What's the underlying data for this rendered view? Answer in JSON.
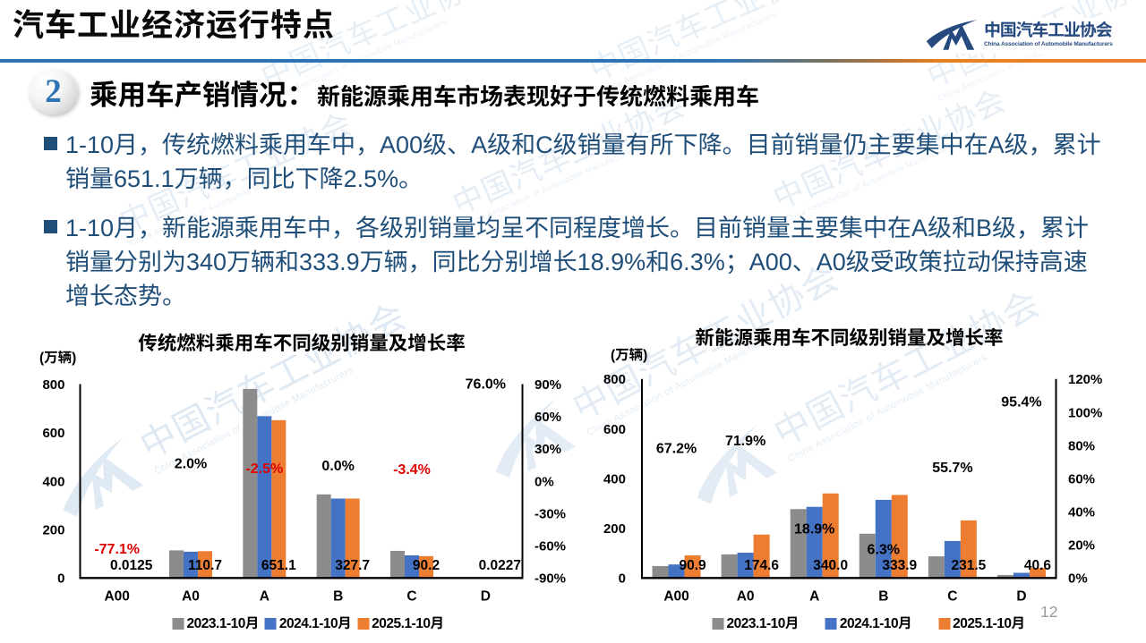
{
  "header": {
    "title": "汽车工业经济运行特点",
    "logo": {
      "zh": "中国汽车工业协会",
      "en": "China Association of Automobile Manufacturers"
    }
  },
  "section": {
    "badge": "2",
    "heading": "乘用车产销情况：",
    "subheading": "新能源乘用车市场表现好于传统燃料乘用车"
  },
  "bullets": [
    {
      "lines": [
        "1-10月，传统燃料乘用车中，A00级、A级和C级销量有所下降。目前销量仍主要集中在A级，累计",
        "销量651.1万辆，同比下降2.5%。"
      ]
    },
    {
      "lines": [
        "1-10月，新能源乘用车中，各级别销量均呈不同程度增长。目前销量主要集中在A级和B级，累计",
        "销量分别为340万辆和333.9万辆，同比分别增长18.9%和6.3%；A00、A0级受政策拉动保持高速",
        "增长态势。"
      ]
    }
  ],
  "chart_data": [
    {
      "type": "bar",
      "title": "传统燃料乘用车不同级别销量及增长率",
      "unit_label": "(万辆)",
      "categories": [
        "A00",
        "A0",
        "A",
        "B",
        "C",
        "D"
      ],
      "series": [
        {
          "name": "2023.1-10月",
          "color": "#8C8C8C",
          "values": [
            1.0,
            114.0,
            780.0,
            345.0,
            112.0,
            0.9
          ]
        },
        {
          "name": "2024.1-10月",
          "color": "#4472C4",
          "values": [
            0.055,
            108.5,
            667.8,
            327.7,
            93.4,
            0.013
          ]
        },
        {
          "name": "2025.1-10月",
          "color": "#ED7D31",
          "values": [
            0.0125,
            110.7,
            651.1,
            327.7,
            90.2,
            0.0227
          ]
        }
      ],
      "value_labels": [
        "0.0125",
        "110.7",
        "651.1",
        "327.7",
        "90.2",
        "0.0227"
      ],
      "growth_labels": [
        "-77.1%",
        "2.0%",
        "-2.5%",
        "0.0%",
        "-3.4%",
        "76.0%"
      ],
      "growth_values": [
        -77.1,
        2.0,
        -2.5,
        0.0,
        -3.4,
        76.0
      ],
      "primary_axis": {
        "min": 0,
        "max": 800,
        "step": 200
      },
      "secondary_axis": {
        "min": -90,
        "max": 90,
        "step": 30,
        "suffix": "%"
      },
      "ylabel": "(万辆)",
      "legend_position": "bottom",
      "grid": false
    },
    {
      "type": "bar",
      "title": "新能源乘用车不同级别销量及增长率",
      "unit_label": "(万辆)",
      "categories": [
        "A00",
        "A0",
        "A",
        "B",
        "C",
        "D"
      ],
      "series": [
        {
          "name": "2023.1-10月",
          "color": "#8C8C8C",
          "values": [
            48.0,
            95.0,
            277.0,
            178.0,
            87.0,
            12.0
          ]
        },
        {
          "name": "2024.1-10月",
          "color": "#4472C4",
          "values": [
            54.4,
            101.6,
            286.0,
            314.1,
            148.7,
            20.8
          ]
        },
        {
          "name": "2025.1-10月",
          "color": "#ED7D31",
          "values": [
            90.9,
            174.6,
            340.0,
            333.9,
            231.5,
            40.6
          ]
        }
      ],
      "value_labels": [
        "90.9",
        "174.6",
        "340.0",
        "333.9",
        "231.5",
        "40.6"
      ],
      "growth_labels": [
        "67.2%",
        "71.9%",
        "18.9%",
        "6.3%",
        "55.7%",
        "95.4%"
      ],
      "growth_values": [
        67.2,
        71.9,
        18.9,
        6.3,
        55.7,
        95.4
      ],
      "primary_axis": {
        "min": 0,
        "max": 800,
        "step": 200
      },
      "secondary_axis": {
        "min": 0,
        "max": 120,
        "step": 20,
        "suffix": "%"
      },
      "ylabel": "(万辆)",
      "legend_position": "bottom",
      "grid": false
    }
  ],
  "watermark": {
    "zh": "中国汽车工业协会",
    "en": "China Association of Automobile Manufacturers",
    "color": "#2E74B5"
  },
  "page_number": "12",
  "colors": {
    "accent_blue": "#2E74B5",
    "body_text": "#1F4E79",
    "divider_blue": "#2E74B5",
    "divider_orange": "#E8821E",
    "negative_label": "#E00000",
    "positive_label": "#000000",
    "page_number_gray": "#808080"
  }
}
